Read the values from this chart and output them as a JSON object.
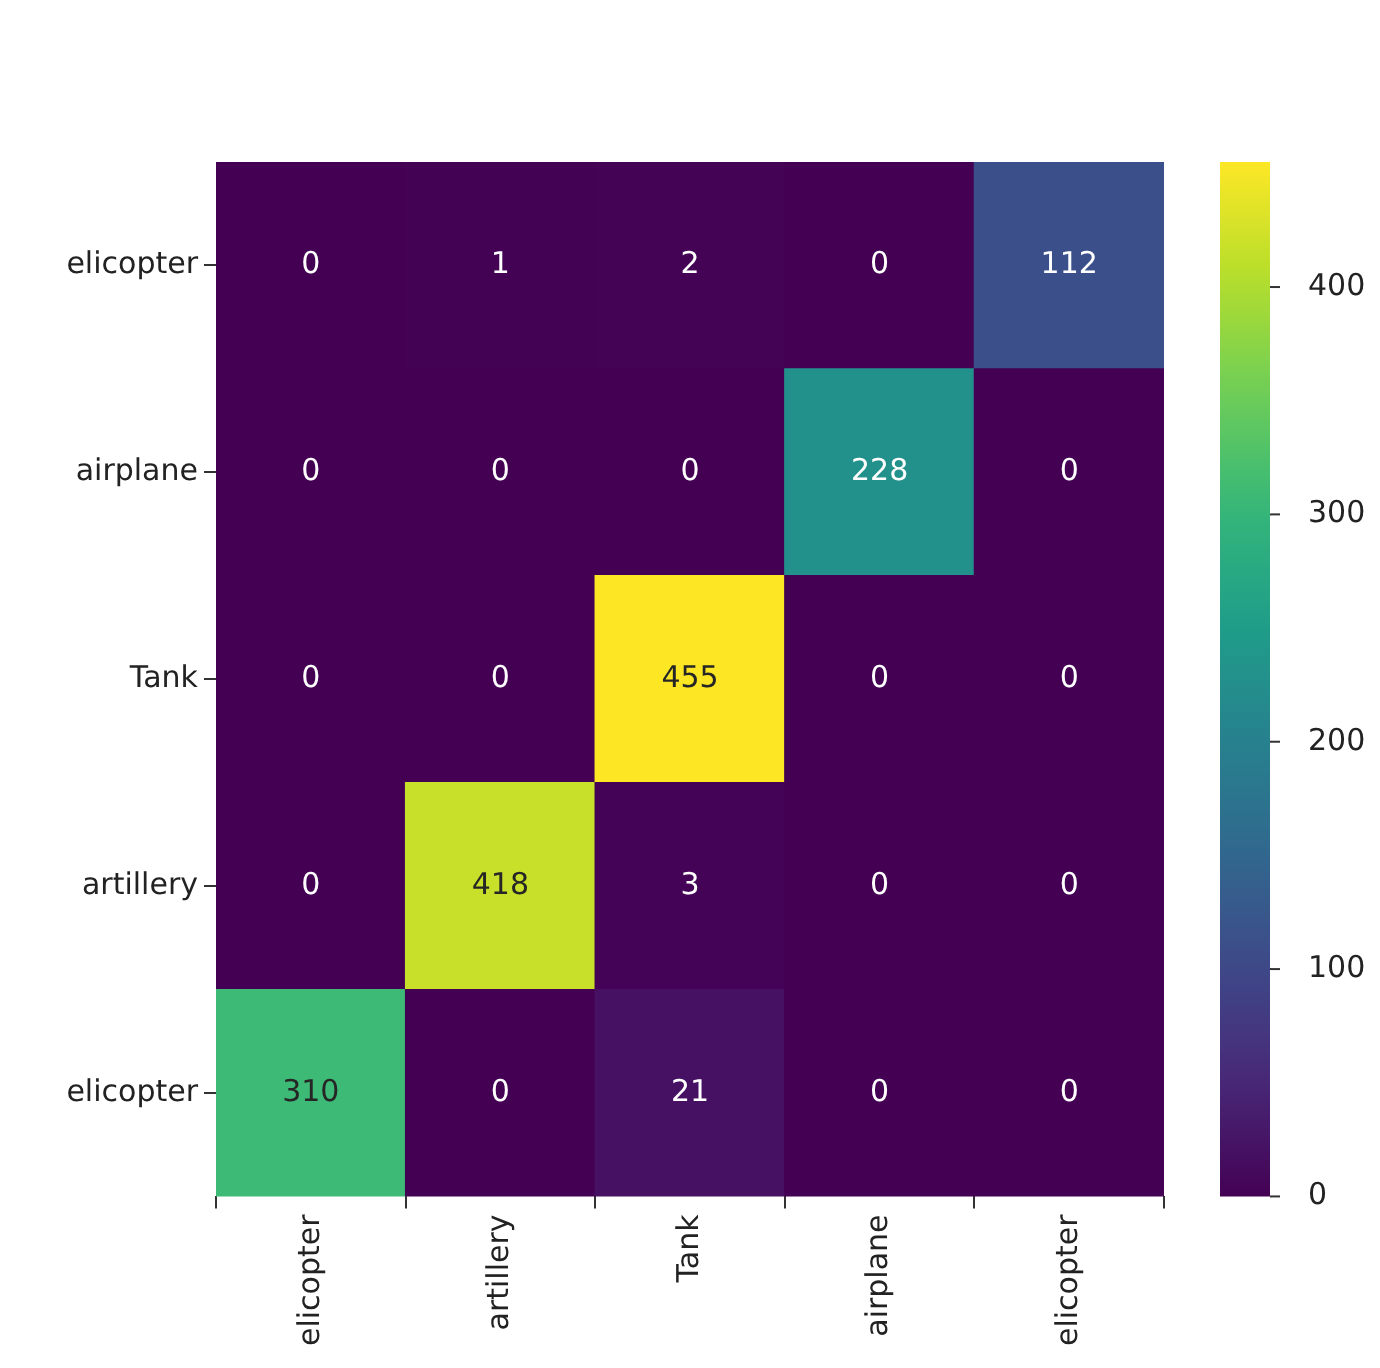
{
  "chart_data": {
    "type": "heatmap",
    "categories": [
      "elicopter",
      "artillery",
      "Tank",
      "airplane",
      "elicopter"
    ],
    "y_categories": [
      "elicopter",
      "airplane",
      "Tank",
      "artillery",
      "elicopter"
    ],
    "cells": [
      [
        0,
        1,
        2,
        0,
        112
      ],
      [
        0,
        0,
        0,
        228,
        0
      ],
      [
        0,
        0,
        455,
        0,
        0
      ],
      [
        0,
        418,
        3,
        0,
        0
      ],
      [
        310,
        0,
        21,
        0,
        0
      ]
    ],
    "data_labels": true,
    "clim": [
      0,
      455
    ],
    "cticks": [
      0,
      100,
      200,
      300,
      400
    ]
  }
}
